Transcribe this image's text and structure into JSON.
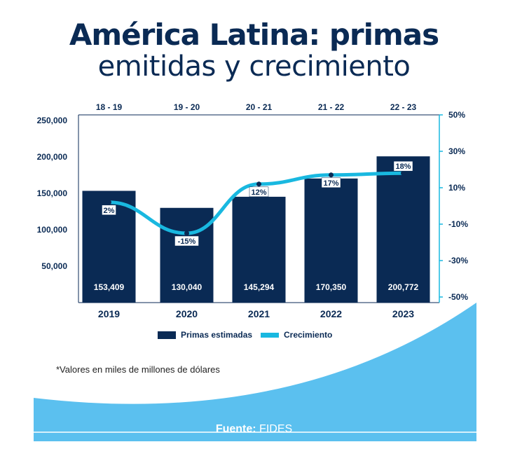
{
  "title_line1": "América Latina: primas",
  "title_line2": "emitidas y crecimiento",
  "note": "*Valores en miles de millones de dólares",
  "source_label": "Fuente:",
  "source_value": "FIDES",
  "colors": {
    "bar": "#0a2a54",
    "line": "#19b8e0",
    "title": "#0a2a54",
    "wave": "#5bc0ef"
  },
  "chart_data": {
    "type": "bar",
    "categories": [
      "2019",
      "2020",
      "2021",
      "2022",
      "2023"
    ],
    "periods": [
      "18 - 19",
      "19 - 20",
      "20 - 21",
      "21 - 22",
      "22 - 23"
    ],
    "series": [
      {
        "name": "Primas estimadas",
        "type": "bar",
        "axis": "left",
        "values": [
          153409,
          130040,
          145294,
          170350,
          200772
        ],
        "labels": [
          "153,409",
          "130,040",
          "145,294",
          "170,350",
          "200,772"
        ]
      },
      {
        "name": "Crecimiento",
        "type": "line",
        "axis": "right",
        "values": [
          2,
          -15,
          12,
          17,
          18
        ],
        "labels": [
          "2%",
          "-15%",
          "12%",
          "17%",
          "18%"
        ]
      }
    ],
    "left_axis": {
      "ticks": [
        50000,
        100000,
        150000,
        200000,
        250000
      ],
      "tick_labels": [
        "50,000",
        "100,000",
        "150,000",
        "200,000",
        "250,000"
      ]
    },
    "right_axis": {
      "ticks": [
        50,
        30,
        10,
        -10,
        -30,
        -50
      ],
      "tick_labels": [
        "50%",
        "30%",
        "10%",
        "-10%",
        "-30%",
        "-50%"
      ]
    },
    "legend_position": "bottom"
  }
}
